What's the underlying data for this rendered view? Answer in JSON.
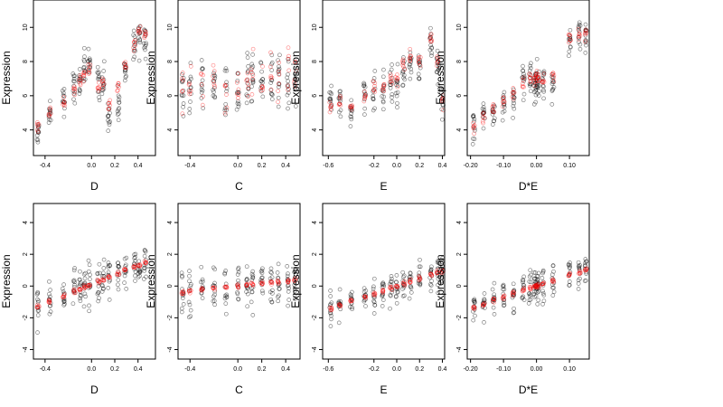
{
  "chart_data": [
    {
      "type": "scatter",
      "xlabel": "D",
      "ylabel": "Expression",
      "xticks": [
        "-0.4",
        "0.0",
        "0.2",
        "0.4"
      ],
      "xtick_values": [
        -0.4,
        0.0,
        0.2,
        0.4
      ],
      "yticks": [
        "4",
        "6",
        "8",
        "10"
      ],
      "ytick_values": [
        4,
        6,
        8,
        10
      ],
      "xlim": [
        -0.5,
        0.55
      ],
      "ylim": [
        2.5,
        11.6
      ],
      "x_groups": [
        -0.46,
        -0.36,
        -0.24,
        -0.15,
        -0.1,
        -0.06,
        -0.02,
        0.06,
        0.1,
        0.15,
        0.23,
        0.29,
        0.37,
        0.41,
        0.46
      ],
      "series": [
        {
          "color": "#000000",
          "values": {
            "center": [
              3.8,
              4.9,
              5.6,
              6.4,
              7.0,
              7.6,
              7.8,
              6.6,
              6.9,
              5.0,
              5.5,
              7.4,
              9.0,
              9.6,
              9.4
            ],
            "spread": 1.3
          }
        },
        {
          "color": "#ff0000",
          "values": {
            "center": [
              4.2,
              5.0,
              5.6,
              6.3,
              6.8,
              7.2,
              7.7,
              6.5,
              6.7,
              5.6,
              6.4,
              7.8,
              9.0,
              9.7,
              9.6
            ],
            "spread": 0.55
          }
        }
      ]
    },
    {
      "type": "scatter",
      "xlabel": "C",
      "ylabel": "Expression",
      "xticks": [
        "-0.4",
        "0.0",
        "0.2",
        "0.4"
      ],
      "xtick_values": [
        -0.4,
        0.0,
        0.2,
        0.4
      ],
      "yticks": [
        "4",
        "6",
        "8",
        "10"
      ],
      "ytick_values": [
        4,
        6,
        8,
        10
      ],
      "xlim": [
        -0.5,
        0.52
      ],
      "ylim": [
        2.5,
        11.6
      ],
      "x_groups": [
        -0.46,
        -0.4,
        -0.3,
        -0.2,
        -0.1,
        0.0,
        0.08,
        0.12,
        0.2,
        0.28,
        0.34,
        0.42,
        0.48
      ],
      "series": [
        {
          "color": "#000000",
          "values": {
            "center": [
              6.2,
              6.6,
              6.8,
              6.5,
              6.2,
              6.0,
              6.5,
              7.0,
              6.5,
              6.8,
              6.8,
              7.0,
              7.0
            ],
            "spread": 2.2
          }
        },
        {
          "color": "#ff0000",
          "values": {
            "center": [
              6.3,
              6.8,
              7.0,
              6.7,
              6.5,
              6.3,
              6.8,
              7.2,
              6.9,
              7.2,
              7.0,
              7.2,
              7.3
            ],
            "spread": 1.8
          }
        }
      ]
    },
    {
      "type": "scatter",
      "xlabel": "E",
      "ylabel": "Expression",
      "xticks": [
        "-0.6",
        "-0.2",
        "0.0",
        "0.2",
        "0.4"
      ],
      "xtick_values": [
        -0.6,
        -0.2,
        0.0,
        0.2,
        0.4
      ],
      "yticks": [
        "4",
        "6",
        "8",
        "10"
      ],
      "ytick_values": [
        4,
        6,
        8,
        10
      ],
      "xlim": [
        -0.65,
        0.42
      ],
      "ylim": [
        2.5,
        11.6
      ],
      "x_groups": [
        -0.58,
        -0.5,
        -0.4,
        -0.28,
        -0.2,
        -0.12,
        -0.05,
        0.0,
        0.06,
        0.12,
        0.2,
        0.3,
        0.36,
        0.4
      ],
      "series": [
        {
          "color": "#000000",
          "values": {
            "center": [
              5.8,
              5.6,
              5.2,
              6.2,
              6.3,
              6.3,
              6.8,
              6.5,
              7.5,
              8.0,
              7.8,
              9.0,
              7.6,
              5.8
            ],
            "spread": 1.3
          }
        },
        {
          "color": "#ff0000",
          "values": {
            "center": [
              5.3,
              5.6,
              5.5,
              5.8,
              6.4,
              6.6,
              7.0,
              7.0,
              7.8,
              8.3,
              8.0,
              9.4,
              8.0,
              5.6
            ],
            "spread": 0.6
          }
        }
      ]
    },
    {
      "type": "scatter",
      "xlabel": "D*E",
      "ylabel": "Expression",
      "xticks": [
        "-0.20",
        "-0.10",
        "0.00",
        "0.10"
      ],
      "xtick_values": [
        -0.2,
        -0.1,
        0.0,
        0.1
      ],
      "yticks": [
        "4",
        "6",
        "8",
        "10"
      ],
      "ytick_values": [
        4,
        6,
        8,
        10
      ],
      "xlim": [
        -0.21,
        0.16
      ],
      "ylim": [
        2.5,
        11.6
      ],
      "x_groups": [
        -0.19,
        -0.16,
        -0.13,
        -0.1,
        -0.07,
        -0.04,
        -0.02,
        -0.005,
        0.0,
        0.005,
        0.02,
        0.05,
        0.1,
        0.13,
        0.15
      ],
      "series": [
        {
          "color": "#000000",
          "values": {
            "center": [
              4.3,
              4.9,
              5.2,
              5.6,
              6.0,
              6.8,
              7.0,
              6.6,
              7.0,
              6.8,
              6.6,
              6.8,
              9.2,
              9.5,
              9.6
            ],
            "spread": 1.3
          }
        },
        {
          "color": "#ff0000",
          "values": {
            "center": [
              4.4,
              4.8,
              5.2,
              5.6,
              6.2,
              6.8,
              7.2,
              7.0,
              7.2,
              7.0,
              7.0,
              7.2,
              9.3,
              9.6,
              9.7
            ],
            "spread": 0.5
          }
        }
      ]
    },
    {
      "type": "scatter",
      "xlabel": "D",
      "ylabel": "Expression",
      "xticks": [
        "-0.4",
        "0.0",
        "0.2",
        "0.4"
      ],
      "xtick_values": [
        -0.4,
        0.0,
        0.2,
        0.4
      ],
      "yticks": [
        "-4",
        "-2",
        "0",
        "2",
        "4"
      ],
      "ytick_values": [
        -4,
        -2,
        0,
        2,
        4
      ],
      "xlim": [
        -0.5,
        0.55
      ],
      "ylim": [
        -4.6,
        5.2
      ],
      "x_groups": [
        -0.46,
        -0.36,
        -0.24,
        -0.15,
        -0.1,
        -0.06,
        -0.02,
        0.06,
        0.1,
        0.15,
        0.23,
        0.29,
        0.37,
        0.41,
        0.46
      ],
      "series": [
        {
          "color": "#000000",
          "values": {
            "slope": 3.0,
            "intercept": 0.1,
            "spread": 1.6
          }
        },
        {
          "color": "#ff0000",
          "values": {
            "slope": 3.0,
            "intercept": 0.1,
            "spread": 0.15
          }
        }
      ]
    },
    {
      "type": "scatter",
      "xlabel": "C",
      "ylabel": "Expression",
      "xticks": [
        "-0.4",
        "0.0",
        "0.2",
        "0.4"
      ],
      "xtick_values": [
        -0.4,
        0.0,
        0.2,
        0.4
      ],
      "yticks": [
        "-4",
        "-2",
        "0",
        "2",
        "4"
      ],
      "ytick_values": [
        -4,
        -2,
        0,
        2,
        4
      ],
      "xlim": [
        -0.5,
        0.52
      ],
      "ylim": [
        -4.6,
        5.2
      ],
      "x_groups": [
        -0.46,
        -0.4,
        -0.3,
        -0.2,
        -0.1,
        0.0,
        0.08,
        0.12,
        0.2,
        0.28,
        0.34,
        0.42,
        0.48
      ],
      "series": [
        {
          "color": "#000000",
          "values": {
            "slope": 0.8,
            "intercept": 0.0,
            "spread": 1.9
          }
        },
        {
          "color": "#ff0000",
          "values": {
            "slope": 0.8,
            "intercept": 0.0,
            "spread": 0.15
          }
        }
      ]
    },
    {
      "type": "scatter",
      "xlabel": "E",
      "ylabel": "Expression",
      "xticks": [
        "-0.6",
        "-0.2",
        "0.0",
        "0.2",
        "0.4"
      ],
      "xtick_values": [
        -0.6,
        -0.2,
        0.0,
        0.2,
        0.4
      ],
      "yticks": [
        "-4",
        "-2",
        "0",
        "2",
        "4"
      ],
      "ytick_values": [
        -4,
        -2,
        0,
        2,
        4
      ],
      "xlim": [
        -0.65,
        0.42
      ],
      "ylim": [
        -4.6,
        5.2
      ],
      "x_groups": [
        -0.58,
        -0.5,
        -0.4,
        -0.28,
        -0.2,
        -0.12,
        -0.05,
        0.0,
        0.06,
        0.12,
        0.2,
        0.3,
        0.36,
        0.4
      ],
      "series": [
        {
          "color": "#000000",
          "values": {
            "slope": 2.4,
            "intercept": 0.0,
            "spread": 1.3
          }
        },
        {
          "color": "#ff0000",
          "values": {
            "slope": 2.4,
            "intercept": 0.0,
            "spread": 0.15
          }
        }
      ]
    },
    {
      "type": "scatter",
      "xlabel": "D*E",
      "ylabel": "Expression",
      "xticks": [
        "-0.20",
        "-0.10",
        "0.00",
        "0.10"
      ],
      "xtick_values": [
        -0.2,
        -0.1,
        0.0,
        0.1
      ],
      "yticks": [
        "-4",
        "-2",
        "0",
        "2",
        "4"
      ],
      "ytick_values": [
        -4,
        -2,
        0,
        2,
        4
      ],
      "xlim": [
        -0.21,
        0.16
      ],
      "ylim": [
        -4.6,
        5.2
      ],
      "x_groups": [
        -0.19,
        -0.16,
        -0.13,
        -0.1,
        -0.07,
        -0.04,
        -0.02,
        -0.005,
        0.0,
        0.005,
        0.02,
        0.05,
        0.1,
        0.13,
        0.15
      ],
      "series": [
        {
          "color": "#000000",
          "values": {
            "slope": 7.0,
            "intercept": 0.0,
            "spread": 1.4
          }
        },
        {
          "color": "#ff0000",
          "values": {
            "slope": 7.0,
            "intercept": 0.0,
            "spread": 0.15
          }
        }
      ]
    }
  ]
}
